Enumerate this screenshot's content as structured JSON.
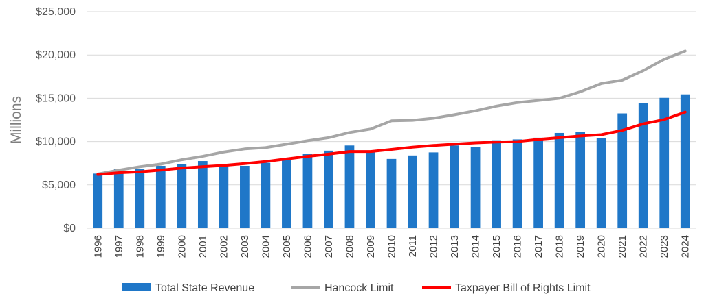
{
  "chart_data": {
    "type": "bar",
    "title": "",
    "xlabel": "",
    "ylabel": "Millions",
    "ylim": [
      0,
      25000
    ],
    "yticks": [
      0,
      5000,
      10000,
      15000,
      20000,
      25000
    ],
    "ytick_labels": [
      "$0",
      "$5,000",
      "$10,000",
      "$15,000",
      "$20,000",
      "$25,000"
    ],
    "grid": true,
    "legend_position": "bottom",
    "categories": [
      "1996",
      "1997",
      "1998",
      "1999",
      "2000",
      "2001",
      "2002",
      "2003",
      "2004",
      "2005",
      "2006",
      "2007",
      "2008",
      "2009",
      "2010",
      "2011",
      "2012",
      "2013",
      "2014",
      "2015",
      "2016",
      "2017",
      "2018",
      "2019",
      "2020",
      "2021",
      "2022",
      "2023",
      "2024"
    ],
    "series": [
      {
        "name": "Total State Revenue",
        "type": "bar",
        "color": "#1f77c8",
        "values": [
          6300,
          6850,
          6850,
          7200,
          7400,
          7750,
          7350,
          7200,
          7550,
          7850,
          8550,
          8950,
          9550,
          8800,
          8000,
          8400,
          8750,
          9550,
          9400,
          10150,
          10250,
          10450,
          11000,
          11150,
          10400,
          13250,
          14450,
          15050,
          15450
        ]
      },
      {
        "name": "Hancock Limit",
        "type": "line",
        "color": "#a6a6a6",
        "values": [
          6250,
          6700,
          7100,
          7400,
          7900,
          8300,
          8800,
          9150,
          9300,
          9700,
          10100,
          10450,
          11050,
          11450,
          12400,
          12450,
          12700,
          13100,
          13550,
          14100,
          14500,
          14750,
          15000,
          15750,
          16700,
          17100,
          18200,
          19500,
          20450
        ]
      },
      {
        "name": "Taxpayer Bill of Rights Limit",
        "type": "line",
        "color": "#ff0000",
        "values": [
          6200,
          6400,
          6500,
          6700,
          6950,
          7100,
          7250,
          7450,
          7700,
          8000,
          8300,
          8550,
          8850,
          8850,
          9100,
          9350,
          9550,
          9700,
          9850,
          9950,
          10000,
          10250,
          10450,
          10650,
          10800,
          11300,
          12050,
          12550,
          13400
        ]
      }
    ]
  }
}
